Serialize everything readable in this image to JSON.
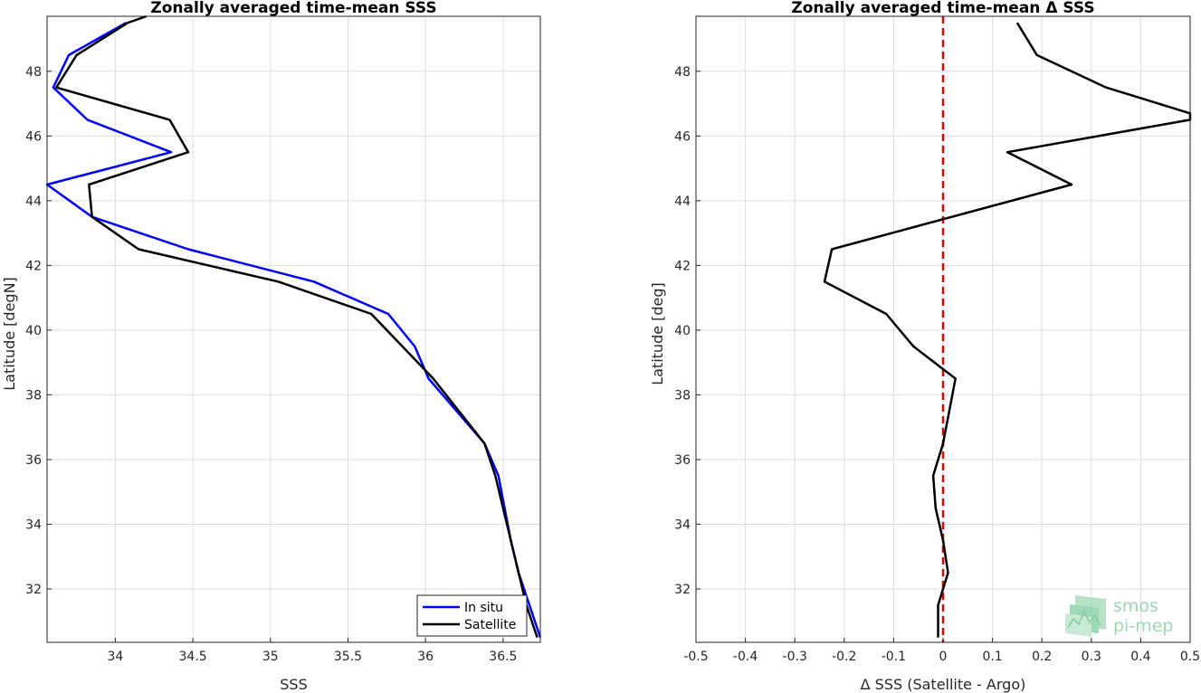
{
  "chart_data": [
    {
      "type": "line",
      "title": "Zonally averaged time-mean SSS",
      "xlabel": "SSS",
      "ylabel": "Latitude [degN]",
      "xlim": [
        33.56,
        36.74
      ],
      "ylim": [
        30.35,
        49.7
      ],
      "xticks": [
        34,
        34.5,
        35,
        35.5,
        36,
        36.5
      ],
      "xtick_labels": [
        "34",
        "34.5",
        "35",
        "35.5",
        "36",
        "36.5"
      ],
      "yticks": [
        32,
        34,
        36,
        38,
        40,
        42,
        44,
        46,
        48
      ],
      "ytick_labels": [
        "32",
        "34",
        "36",
        "38",
        "40",
        "42",
        "44",
        "46",
        "48"
      ],
      "grid": true,
      "legend_position": "bottom-right",
      "series": [
        {
          "name": "In situ",
          "color": "#0000ff",
          "x": [
            36.74,
            36.6,
            36.55,
            36.47,
            36.38,
            36.02,
            35.93,
            35.76,
            35.28,
            34.47,
            33.85,
            33.56,
            34.36,
            33.82,
            33.6,
            33.7,
            34.07
          ],
          "y": [
            30.5,
            32.5,
            33.5,
            35.5,
            36.5,
            38.5,
            39.5,
            40.5,
            41.5,
            42.5,
            43.5,
            44.5,
            45.5,
            46.5,
            47.5,
            48.5,
            49.5
          ]
        },
        {
          "name": "Satellite",
          "color": "#000000",
          "x": [
            36.72,
            36.65,
            36.55,
            36.45,
            36.38,
            36.05,
            35.85,
            35.65,
            35.05,
            34.15,
            33.85,
            33.83,
            34.47,
            34.35,
            33.62,
            33.75,
            34.08,
            34.2
          ],
          "y": [
            30.5,
            31.5,
            33.5,
            35.5,
            36.5,
            38.5,
            39.5,
            40.5,
            41.5,
            42.5,
            43.5,
            44.5,
            45.5,
            46.5,
            47.5,
            48.5,
            49.5,
            49.7
          ]
        }
      ]
    },
    {
      "type": "line",
      "title": "Zonally averaged time-mean Δ SSS",
      "xlabel": "Δ SSS (Satellite - Argo)",
      "ylabel": "Latitude [deg]",
      "xlim": [
        -0.5,
        0.5
      ],
      "ylim": [
        30.35,
        49.7
      ],
      "xticks": [
        -0.5,
        -0.4,
        -0.3,
        -0.2,
        -0.1,
        0,
        0.1,
        0.2,
        0.3,
        0.4,
        0.5
      ],
      "xtick_labels": [
        "-0.5",
        "-0.4",
        "-0.3",
        "-0.2",
        "-0.1",
        "0",
        "0.1",
        "0.2",
        "0.3",
        "0.4",
        "0.5"
      ],
      "yticks": [
        32,
        34,
        36,
        38,
        40,
        42,
        44,
        46,
        48
      ],
      "ytick_labels": [
        "32",
        "34",
        "36",
        "38",
        "40",
        "42",
        "44",
        "46",
        "48"
      ],
      "grid": true,
      "reference_line": {
        "x": 0,
        "color": "#e00000",
        "style": "dashed"
      },
      "series": [
        {
          "color": "#000000",
          "x": [
            -0.01,
            -0.01,
            0.01,
            0,
            -0.015,
            -0.02,
            0,
            0.025,
            -0.06,
            -0.115,
            -0.24,
            -0.225,
            0.26,
            0.13,
            0.5,
            0.5,
            0.33,
            0.19,
            0.15
          ],
          "y": [
            30.5,
            31.5,
            32.5,
            33.5,
            34.5,
            35.5,
            36.5,
            38.5,
            39.5,
            40.5,
            41.5,
            42.5,
            44.5,
            45.5,
            46.5,
            46.7,
            47.5,
            48.5,
            49.5
          ]
        }
      ]
    }
  ],
  "logo": {
    "line1": "smos",
    "line2": "pi-mep"
  }
}
